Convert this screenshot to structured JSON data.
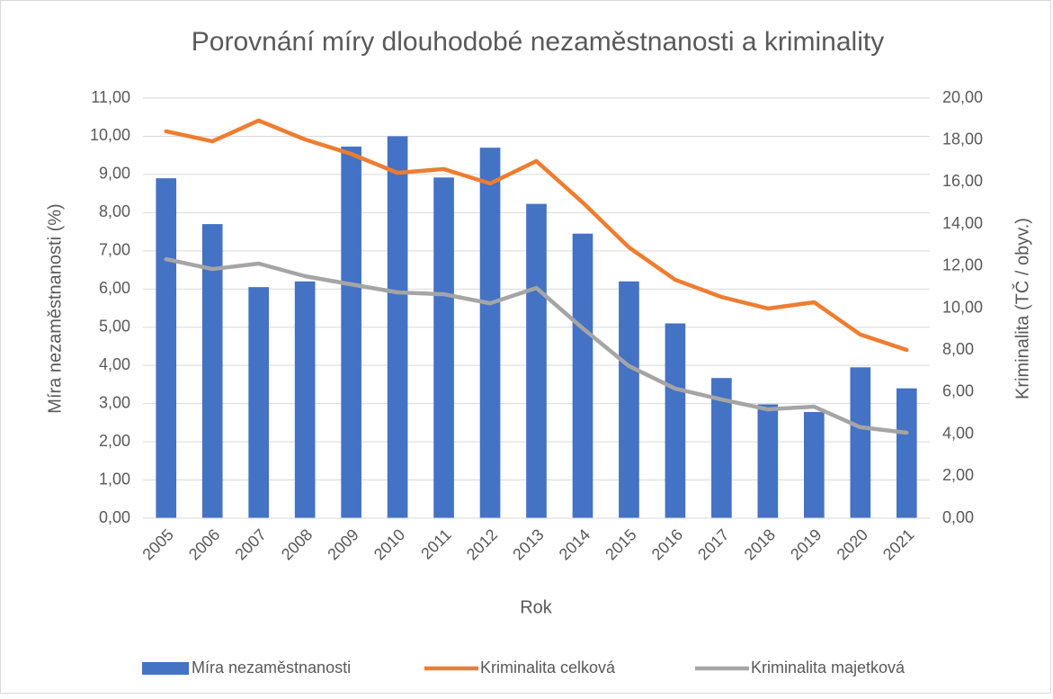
{
  "chart_data": {
    "type": "bar-line",
    "title": "Porovnání míry dlouhodobé nezaměstnanosti a kriminality",
    "x_label": "Rok",
    "y_label": "Míra nezaměstnanosti (%)",
    "y2_label": "Kriminalita (TČ / obyv.)",
    "categories": [
      "2005",
      "2006",
      "2007",
      "2008",
      "2009",
      "2010",
      "2011",
      "2012",
      "2013",
      "2014",
      "2015",
      "2016",
      "2017",
      "2018",
      "2019",
      "2020",
      "2021"
    ],
    "series": [
      {
        "name": "Míra nezaměstnanosti",
        "type": "bar",
        "color": "#4472c4",
        "axis": "y",
        "values": [
          8.9,
          7.7,
          6.05,
          6.2,
          9.73,
          10.0,
          8.92,
          9.7,
          8.23,
          7.45,
          6.2,
          5.1,
          3.67,
          2.98,
          2.78,
          3.95,
          3.4
        ]
      },
      {
        "name": "Kriminalita celková",
        "type": "line",
        "color": "#ed7d31",
        "axis": "y2",
        "values": [
          18.42,
          17.94,
          18.93,
          18.03,
          17.34,
          16.44,
          16.62,
          15.93,
          17.0,
          15.03,
          12.89,
          11.35,
          10.53,
          9.98,
          10.28,
          8.74,
          8.01
        ]
      },
      {
        "name": "Kriminalita majetková",
        "type": "line",
        "color": "#a5a5a5",
        "axis": "y2",
        "values": [
          12.33,
          11.86,
          12.12,
          11.52,
          11.13,
          10.75,
          10.66,
          10.23,
          10.96,
          9.04,
          7.24,
          6.17,
          5.65,
          5.18,
          5.31,
          4.33,
          4.07
        ]
      }
    ],
    "ylim": [
      0,
      11
    ],
    "yticks": [
      {
        "value": 0,
        "label": "0,00"
      },
      {
        "value": 1,
        "label": "1,00"
      },
      {
        "value": 2,
        "label": "2,00"
      },
      {
        "value": 3,
        "label": "3,00"
      },
      {
        "value": 4,
        "label": "4,00"
      },
      {
        "value": 5,
        "label": "5,00"
      },
      {
        "value": 6,
        "label": "6,00"
      },
      {
        "value": 7,
        "label": "7,00"
      },
      {
        "value": 8,
        "label": "8,00"
      },
      {
        "value": 9,
        "label": "9,00"
      },
      {
        "value": 10,
        "label": "10,00"
      },
      {
        "value": 11,
        "label": "11,00"
      }
    ],
    "y2lim": [
      0,
      20
    ],
    "y2ticks": [
      {
        "value": 0,
        "label": "0,00"
      },
      {
        "value": 2,
        "label": "2,00"
      },
      {
        "value": 4,
        "label": "4,00"
      },
      {
        "value": 6,
        "label": "6,00"
      },
      {
        "value": 8,
        "label": "8,00"
      },
      {
        "value": 10,
        "label": "10,00"
      },
      {
        "value": 12,
        "label": "12,00"
      },
      {
        "value": 14,
        "label": "14,00"
      },
      {
        "value": 16,
        "label": "16,00"
      },
      {
        "value": 18,
        "label": "18,00"
      },
      {
        "value": 20,
        "label": "20,00"
      }
    ],
    "grid": true,
    "legend": "bottom"
  }
}
